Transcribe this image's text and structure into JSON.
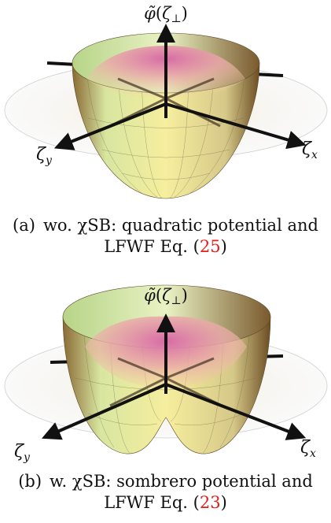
{
  "figure": {
    "subfigures": [
      {
        "id": "a",
        "axis_labels": {
          "vertical_base": "φ̃",
          "vertical_arg": "ζ",
          "vertical_sub": "⊥",
          "x_base": "ζ",
          "x_sub": "x",
          "y_base": "ζ",
          "y_sub": "y"
        },
        "caption": {
          "tag": "(a)",
          "line1": "wo. χSB: quadratic potential and",
          "line2_prefix": "LFWF Eq. (",
          "ref": "25",
          "line2_suffix": ")"
        },
        "surface": "quadratic"
      },
      {
        "id": "b",
        "axis_labels": {
          "vertical_base": "φ̃",
          "vertical_arg": "ζ",
          "vertical_sub": "⊥",
          "x_base": "ζ",
          "x_sub": "x",
          "y_base": "ζ",
          "y_sub": "y"
        },
        "caption": {
          "tag": "(b)",
          "line1": "w. χSB: sombrero potential and",
          "line2_prefix": "LFWF Eq. (",
          "ref": "23",
          "line2_suffix": ")"
        },
        "surface": "sombrero"
      }
    ],
    "colors": {
      "surface_green": "#cfe3a6",
      "surface_yellow": "#f3e8a0",
      "surface_brown": "#7a5a2e",
      "wavefunction_pink": "#d9789a",
      "ref_red": "#e0201a",
      "axis_black": "#111111"
    }
  }
}
